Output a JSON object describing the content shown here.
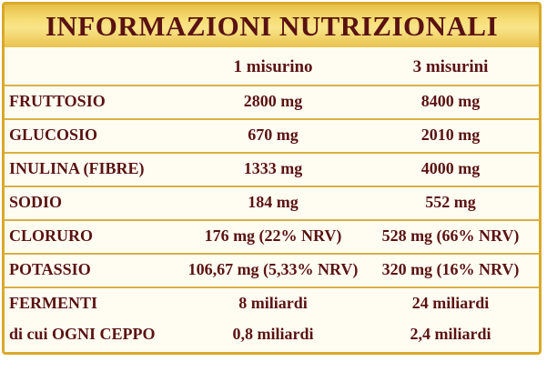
{
  "title": "INFORMAZIONI NUTRIZIONALI",
  "columns": [
    "1 misurino",
    "3 misurini"
  ],
  "rows": [
    {
      "label": "FRUTTOSIO",
      "v1": "2800 mg",
      "v2": "8400 mg"
    },
    {
      "label": "GLUCOSIO",
      "v1": "670 mg",
      "v2": "2010 mg"
    },
    {
      "label": "INULINA (FIBRE)",
      "v1": "1333 mg",
      "v2": "4000 mg"
    },
    {
      "label": "SODIO",
      "v1": "184 mg",
      "v2": "552 mg"
    },
    {
      "label": "CLORURO",
      "v1": "176 mg (22% NRV)",
      "v2": "528 mg (66% NRV)"
    },
    {
      "label": "POTASSIO",
      "v1": "106,67 mg (5,33% NRV)",
      "v2": "320 mg (16% NRV)"
    },
    {
      "label": "FERMENTI",
      "v1": "8 miliardi",
      "v2": "24 miliardi"
    },
    {
      "label": "di cui OGNI CEPPO",
      "v1": "0,8 miliardi",
      "v2": "2,4 miliardi"
    }
  ],
  "colors": {
    "border": "#d9a92a",
    "text": "#5a1212",
    "background": "#fffdf2"
  }
}
